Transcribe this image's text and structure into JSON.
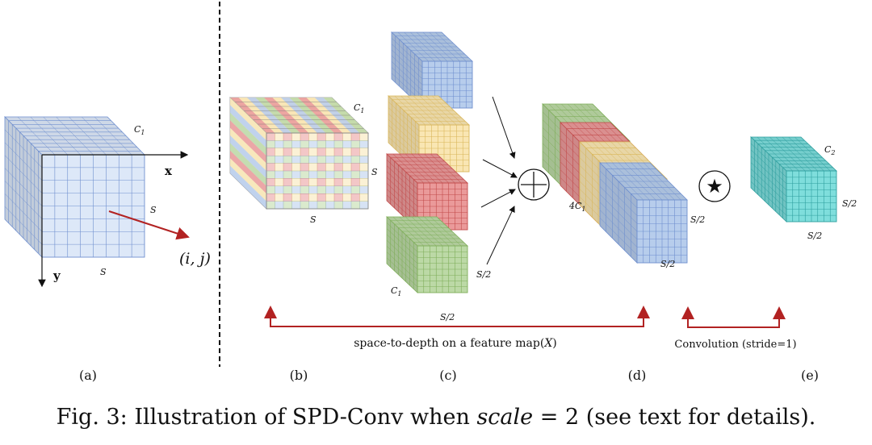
{
  "colors": {
    "blue": "#b7cdec",
    "blue_line": "#6f8fcf",
    "yellow": "#f9e6b3",
    "yellow_line": "#d9b65a",
    "red": "#ea9a9a",
    "red_line": "#c24a4a",
    "green": "#bcd9a6",
    "green_line": "#7fae5a",
    "teal": "#7fdedc",
    "teal_line": "#2e9e9e",
    "arrow_red": "#b22222"
  },
  "panel_a": {
    "c_label": "C",
    "c_sub": "1",
    "x_label": "x",
    "y_label": "y",
    "s_right": "S",
    "s_bottom": "S",
    "ij_label": "(i, j)"
  },
  "panel_b": {
    "c_label": "C",
    "c_sub": "1",
    "s_right": "S",
    "s_bottom": "S"
  },
  "panel_c": {
    "c_label": "C",
    "c_sub": "1",
    "s_right": "S/2",
    "s_bottom": "S/2"
  },
  "operators": {
    "concat": "⊕",
    "conv": "★"
  },
  "panel_d": {
    "depth_label": "4C",
    "depth_sub": "1",
    "s_right": "S/2",
    "s_bottom": "S/2"
  },
  "panel_e": {
    "c_label": "C",
    "c_sub": "2",
    "s_right": "S/2",
    "s_bottom": "S/2"
  },
  "annotations": {
    "spd": "space-to-depth on a feature map(",
    "spd_var": "X",
    "spd_end": ")",
    "conv": "Convolution (stride=1)"
  },
  "panel_labels": [
    "(a)",
    "(b)",
    "(c)",
    "(d)",
    "(e)"
  ],
  "caption": {
    "prefix": "Fig. 3: Illustration of SPD-Conv when ",
    "var": "scale",
    "middle": " = 2 (see text for details)."
  }
}
